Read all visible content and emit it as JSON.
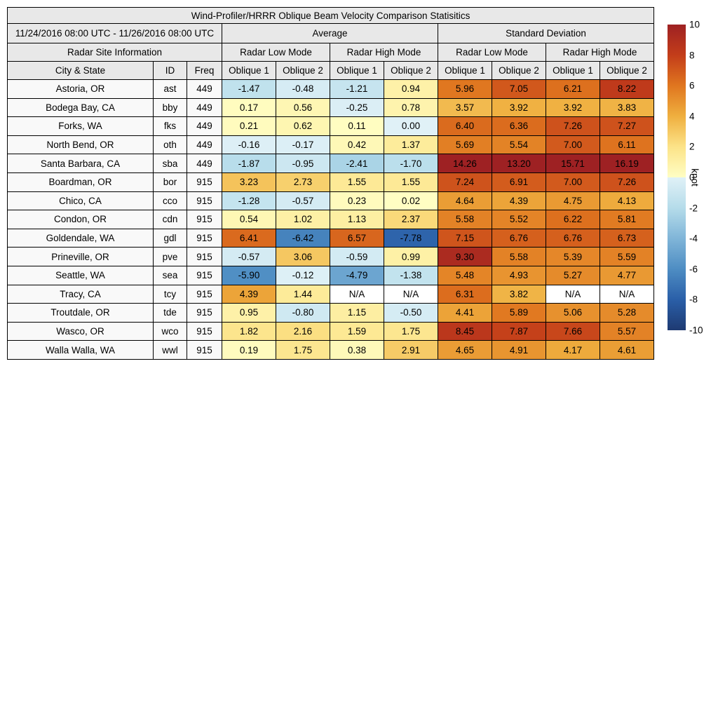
{
  "title": "Wind-Profiler/HRRR Oblique Beam Velocity Comparison Statisitics",
  "date_range": "11/24/2016 08:00 UTC - 11/26/2016 08:00 UTC",
  "header": {
    "average": "Average",
    "std_dev": "Standard Deviation",
    "site_info": "Radar Site Information",
    "low_mode": "Radar Low Mode",
    "high_mode": "Radar High Mode",
    "col_city": "City & State",
    "col_id": "ID",
    "col_freq": "Freq",
    "oblique1": "Oblique 1",
    "oblique2": "Oblique 2"
  },
  "colors": {
    "header_bg": "#e8e8e8",
    "row_label_bg": "#f9f9f9",
    "na_cell": "#ffffff",
    "border": "#000000"
  },
  "colorbar": {
    "label": "knot",
    "vmin": -10,
    "vmax": 10,
    "ticks": [
      10,
      8,
      6,
      4,
      2,
      0,
      -2,
      -4,
      -6,
      -8,
      -10
    ],
    "warm_stops": [
      [
        0,
        "#fffec4"
      ],
      [
        2,
        "#fce388"
      ],
      [
        4,
        "#efaf3f"
      ],
      [
        6,
        "#e0761f"
      ],
      [
        8,
        "#c33d1a"
      ],
      [
        10,
        "#9e2123"
      ]
    ],
    "cool_stops": [
      [
        -10,
        "#1e3a72"
      ],
      [
        -8,
        "#2a5fa8"
      ],
      [
        -6,
        "#4e8dc3"
      ],
      [
        -4,
        "#80b5d8"
      ],
      [
        -2,
        "#b5dcea"
      ],
      [
        0,
        "#e0f1f7"
      ]
    ]
  },
  "chart_data": {
    "type": "heatmap",
    "title": "Wind-Profiler/HRRR Oblique Beam Velocity Comparison Statisitics",
    "units": "knot",
    "value_range": [
      -10,
      10
    ],
    "column_groups": [
      "Average Radar Low Mode Oblique 1",
      "Average Radar Low Mode Oblique 2",
      "Average Radar High Mode Oblique 1",
      "Average Radar High Mode Oblique 2",
      "Standard Deviation Radar Low Mode Oblique 1",
      "Standard Deviation Radar Low Mode Oblique 2",
      "Standard Deviation Radar High Mode Oblique 1",
      "Standard Deviation Radar High Mode Oblique 2"
    ],
    "rows": [
      {
        "city": "Astoria, OR",
        "id": "ast",
        "freq": "449",
        "values": [
          "-1.47",
          "-0.48",
          "-1.21",
          "0.94",
          "5.96",
          "7.05",
          "6.21",
          "8.22"
        ]
      },
      {
        "city": "Bodega Bay, CA",
        "id": "bby",
        "freq": "449",
        "values": [
          "0.17",
          "0.56",
          "-0.25",
          "0.78",
          "3.57",
          "3.92",
          "3.92",
          "3.83"
        ]
      },
      {
        "city": "Forks, WA",
        "id": "fks",
        "freq": "449",
        "values": [
          "0.21",
          "0.62",
          "0.11",
          "0.00",
          "6.40",
          "6.36",
          "7.26",
          "7.27"
        ]
      },
      {
        "city": "North Bend, OR",
        "id": "oth",
        "freq": "449",
        "values": [
          "-0.16",
          "-0.17",
          "0.42",
          "1.37",
          "5.69",
          "5.54",
          "7.00",
          "6.11"
        ]
      },
      {
        "city": "Santa Barbara, CA",
        "id": "sba",
        "freq": "449",
        "values": [
          "-1.87",
          "-0.95",
          "-2.41",
          "-1.70",
          "14.26",
          "13.20",
          "15.71",
          "16.19"
        ]
      },
      {
        "city": "Boardman, OR",
        "id": "bor",
        "freq": "915",
        "values": [
          "3.23",
          "2.73",
          "1.55",
          "1.55",
          "7.24",
          "6.91",
          "7.00",
          "7.26"
        ]
      },
      {
        "city": "Chico, CA",
        "id": "cco",
        "freq": "915",
        "values": [
          "-1.28",
          "-0.57",
          "0.23",
          "0.02",
          "4.64",
          "4.39",
          "4.75",
          "4.13"
        ]
      },
      {
        "city": "Condon, OR",
        "id": "cdn",
        "freq": "915",
        "values": [
          "0.54",
          "1.02",
          "1.13",
          "2.37",
          "5.58",
          "5.52",
          "6.22",
          "5.81"
        ]
      },
      {
        "city": "Goldendale, WA",
        "id": "gdl",
        "freq": "915",
        "values": [
          "6.41",
          "-6.42",
          "6.57",
          "-7.78",
          "7.15",
          "6.76",
          "6.76",
          "6.73"
        ]
      },
      {
        "city": "Prineville, OR",
        "id": "pve",
        "freq": "915",
        "values": [
          "-0.57",
          "3.06",
          "-0.59",
          "0.99",
          "9.30",
          "5.58",
          "5.39",
          "5.59"
        ]
      },
      {
        "city": "Seattle, WA",
        "id": "sea",
        "freq": "915",
        "values": [
          "-5.90",
          "-0.12",
          "-4.79",
          "-1.38",
          "5.48",
          "4.93",
          "5.27",
          "4.77"
        ]
      },
      {
        "city": "Tracy, CA",
        "id": "tcy",
        "freq": "915",
        "values": [
          "4.39",
          "1.44",
          "N/A",
          "N/A",
          "6.31",
          "3.82",
          "N/A",
          "N/A"
        ]
      },
      {
        "city": "Troutdale, OR",
        "id": "tde",
        "freq": "915",
        "values": [
          "0.95",
          "-0.80",
          "1.15",
          "-0.50",
          "4.41",
          "5.89",
          "5.06",
          "5.28"
        ]
      },
      {
        "city": "Wasco, OR",
        "id": "wco",
        "freq": "915",
        "values": [
          "1.82",
          "2.16",
          "1.59",
          "1.75",
          "8.45",
          "7.87",
          "7.66",
          "5.57"
        ]
      },
      {
        "city": "Walla Walla, WA",
        "id": "wwl",
        "freq": "915",
        "values": [
          "0.19",
          "1.75",
          "0.38",
          "2.91",
          "4.65",
          "4.91",
          "4.17",
          "4.61"
        ]
      }
    ]
  }
}
